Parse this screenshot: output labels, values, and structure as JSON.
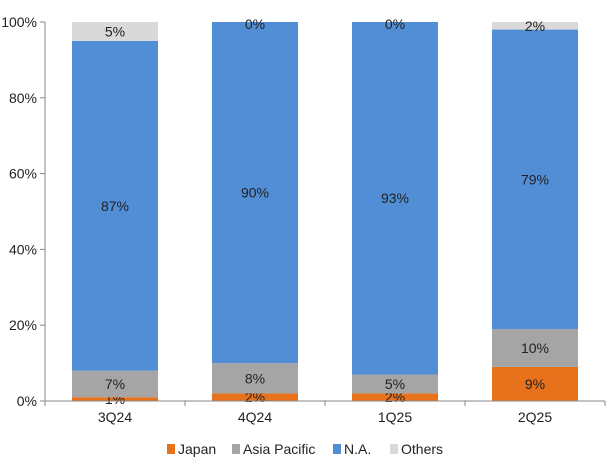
{
  "chart_data": {
    "type": "bar",
    "stacked": true,
    "categories": [
      "3Q24",
      "4Q24",
      "1Q25",
      "2Q25"
    ],
    "series": [
      {
        "name": "Japan",
        "color": "#E8711C",
        "values": [
          1,
          2,
          2,
          9
        ],
        "labels": [
          "1%",
          "2%",
          "2%",
          "9%"
        ]
      },
      {
        "name": "Asia Pacific",
        "color": "#A5A5A5",
        "values": [
          7,
          8,
          5,
          10
        ],
        "labels": [
          "7%",
          "8%",
          "5%",
          "10%"
        ]
      },
      {
        "name": "N.A.",
        "color": "#518ED6",
        "values": [
          87,
          90,
          93,
          79
        ],
        "labels": [
          "87%",
          "90%",
          "93%",
          "79%"
        ]
      },
      {
        "name": "Others",
        "color": "#D9D9D9",
        "values": [
          5,
          0,
          0,
          2
        ],
        "labels": [
          "5%",
          "0%",
          "0%",
          "2%"
        ]
      }
    ],
    "yticks": [
      "0%",
      "20%",
      "40%",
      "60%",
      "80%",
      "100%"
    ],
    "ylim": [
      0,
      100
    ],
    "grid": false,
    "legend": "bottom"
  }
}
